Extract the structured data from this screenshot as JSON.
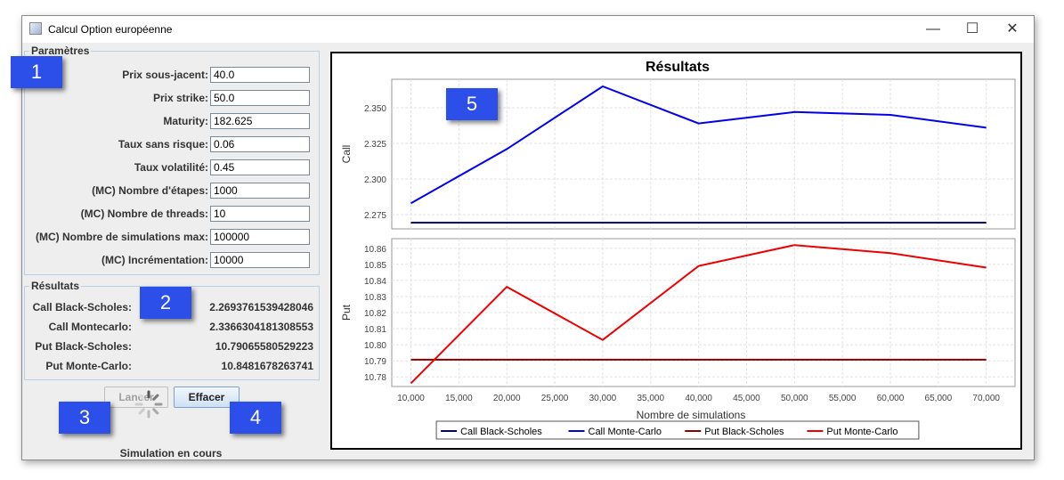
{
  "window": {
    "title": "Calcul Option européenne",
    "minimize": "—",
    "maximize": "☐",
    "close": "✕"
  },
  "params": {
    "title": "Paramètres",
    "fields": [
      {
        "label": "Prix sous-jacent:",
        "value": "40.0"
      },
      {
        "label": "Prix strike:",
        "value": "50.0"
      },
      {
        "label": "Maturity:",
        "value": "182.625"
      },
      {
        "label": "Taux sans risque:",
        "value": "0.06"
      },
      {
        "label": "Taux volatilité:",
        "value": "0.45"
      },
      {
        "label": "(MC) Nombre d'étapes:",
        "value": "1000"
      },
      {
        "label": "(MC) Nombre de threads:",
        "value": "10"
      },
      {
        "label": "(MC) Nombre de simulations max:",
        "value": "100000"
      },
      {
        "label": "(MC) Incrémentation:",
        "value": "10000"
      }
    ]
  },
  "results": {
    "title": "Résultats",
    "rows": [
      {
        "label": "Call Black-Scholes:",
        "value": "2.2693761539428046"
      },
      {
        "label": "Call Montecarlo:",
        "value": "2.3366304181308553"
      },
      {
        "label": "Put Black-Scholes:",
        "value": "10.79065580529223"
      },
      {
        "label": "Put Monte-Carlo:",
        "value": "10.8481678263741"
      }
    ]
  },
  "buttons": {
    "launch": "Lancer",
    "clear": "Effacer"
  },
  "status": "Simulation en cours",
  "badges": [
    "1",
    "2",
    "3",
    "4",
    "5"
  ],
  "chart_data": {
    "type": "line",
    "title": "Résultats",
    "xlabel": "Nombre de simulations",
    "x": [
      10000,
      20000,
      30000,
      40000,
      50000,
      60000,
      70000
    ],
    "xticks": [
      "10,000",
      "15,000",
      "20,000",
      "25,000",
      "30,000",
      "35,000",
      "40,000",
      "45,000",
      "50,000",
      "55,000",
      "60,000",
      "65,000",
      "70,000"
    ],
    "xlim": [
      8000,
      73000
    ],
    "subplots": [
      {
        "ylabel": "Call",
        "ylim": [
          2.265,
          2.37
        ],
        "yticks": [
          "2.275",
          "2.300",
          "2.325",
          "2.350"
        ],
        "series": [
          {
            "name": "Call Black-Scholes",
            "color": "#000080",
            "values": [
              2.2694,
              2.2694,
              2.2694,
              2.2694,
              2.2694,
              2.2694,
              2.2694
            ]
          },
          {
            "name": "Call Monte-Carlo",
            "color": "#0000ee",
            "values": [
              2.283,
              2.321,
              2.365,
              2.339,
              2.347,
              2.345,
              2.336
            ]
          }
        ]
      },
      {
        "ylabel": "Put",
        "ylim": [
          10.774,
          10.866
        ],
        "yticks": [
          "10.78",
          "10.79",
          "10.80",
          "10.81",
          "10.82",
          "10.83",
          "10.84",
          "10.85",
          "10.86"
        ],
        "series": [
          {
            "name": "Put Black-Scholes",
            "color": "#8b0000",
            "values": [
              10.7907,
              10.7907,
              10.7907,
              10.7907,
              10.7907,
              10.7907,
              10.7907
            ]
          },
          {
            "name": "Put Monte-Carlo",
            "color": "#ee0000",
            "values": [
              10.776,
              10.836,
              10.803,
              10.849,
              10.862,
              10.857,
              10.848
            ]
          }
        ]
      }
    ],
    "legend": "bottom",
    "grid": true
  }
}
